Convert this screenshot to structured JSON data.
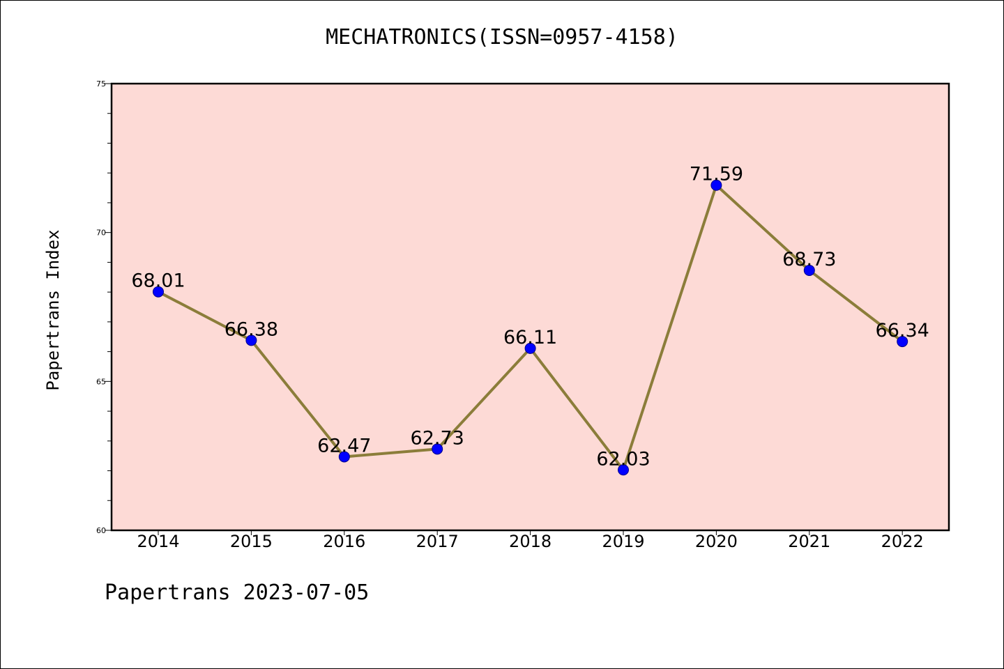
{
  "title": "MECHATRONICS(ISSN=0957-4158)",
  "footer": "Papertrans 2023-07-05",
  "colors": {
    "plot_background": "#fddad6",
    "line": "#8b7d3a",
    "marker": "#0000ff",
    "axes": "#000000"
  },
  "chart_data": {
    "type": "line",
    "title": "MECHATRONICS(ISSN=0957-4158)",
    "xlabel": "",
    "ylabel": "Papertrans Index",
    "categories": [
      "2014",
      "2015",
      "2016",
      "2017",
      "2018",
      "2019",
      "2020",
      "2021",
      "2022"
    ],
    "series": [
      {
        "values": [
          68.01,
          66.38,
          62.47,
          62.73,
          66.11,
          62.03,
          71.59,
          68.73,
          66.34
        ],
        "labels": [
          "68.01",
          "66.38",
          "62.47",
          "62.73",
          "66.11",
          "62.03",
          "71.59",
          "68.73",
          "66.34"
        ]
      }
    ],
    "ylim": [
      60,
      75
    ],
    "yticks": [
      "60",
      "65",
      "70",
      "75"
    ],
    "y_minor_step": 1,
    "grid": false,
    "legend": "none"
  }
}
